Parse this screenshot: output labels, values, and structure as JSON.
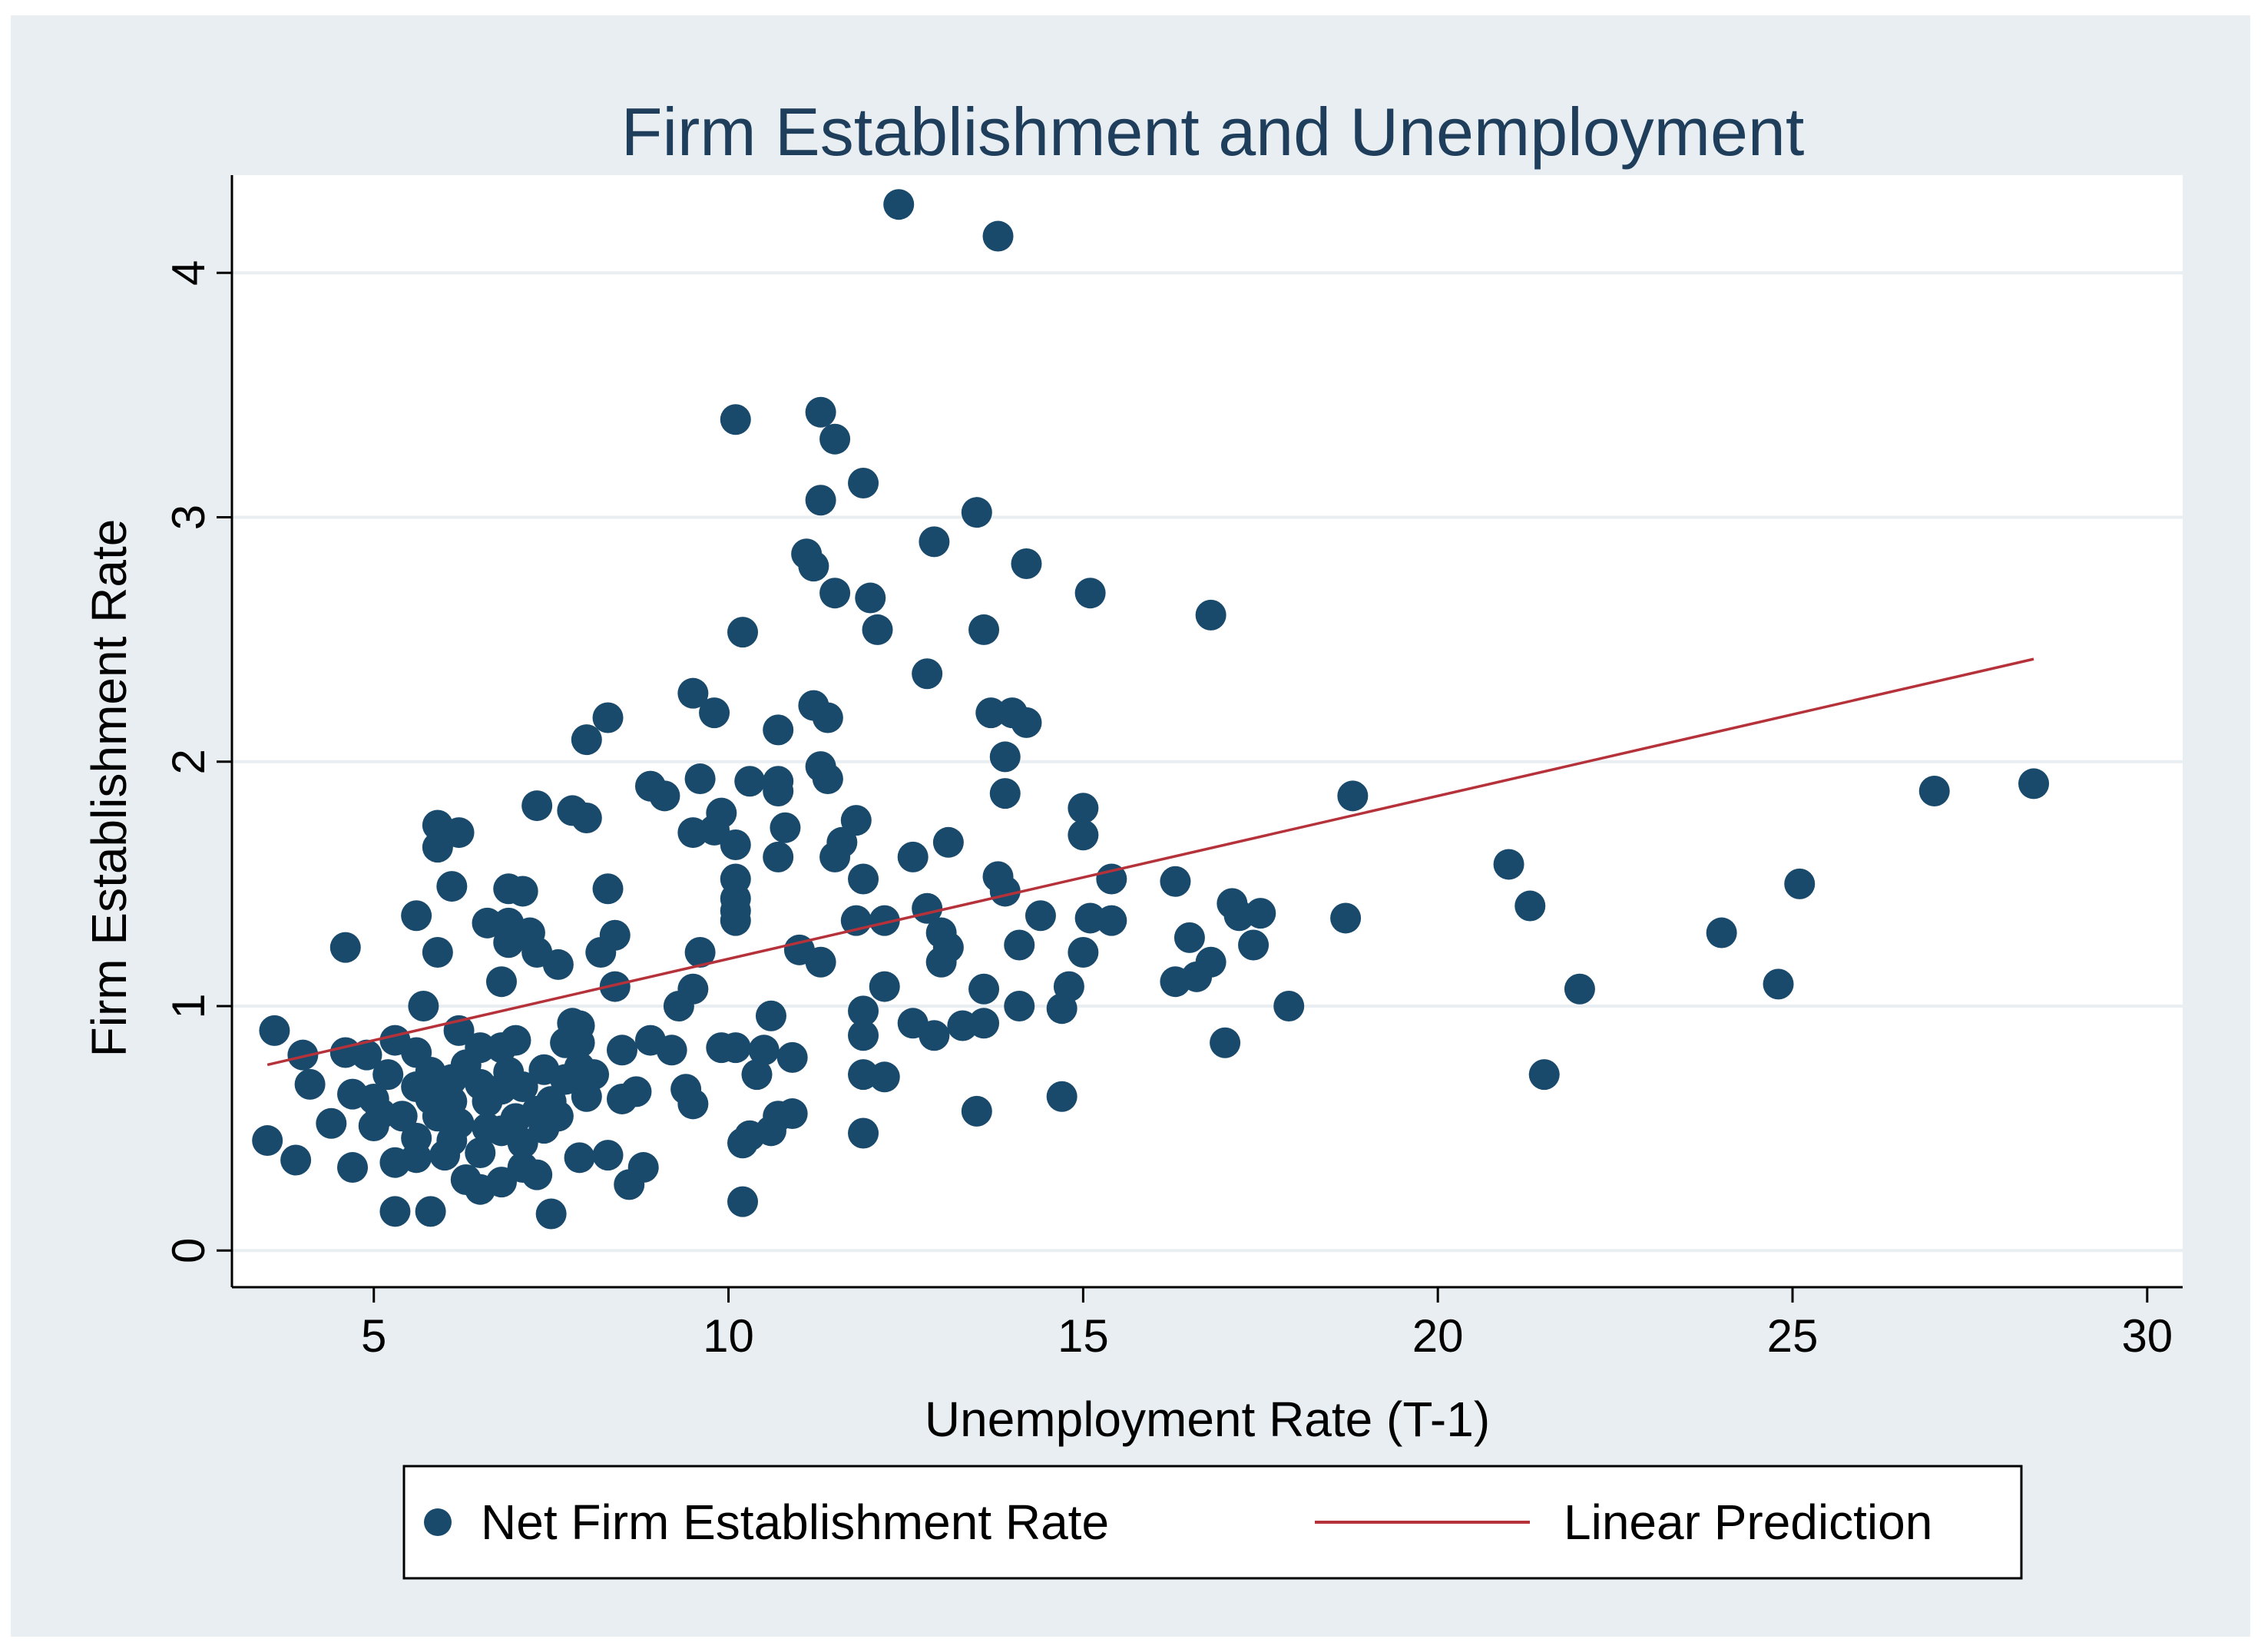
{
  "chart_data": {
    "type": "scatter",
    "title": "Firm Establishment and Unemployment",
    "xlabel": "Unemployment Rate (T-1)",
    "ylabel": "Firm Establishment Rate",
    "xlim": [
      3,
      30.5
    ],
    "ylim": [
      -0.15,
      4.4
    ],
    "xticks": [
      5,
      10,
      15,
      20,
      25,
      30
    ],
    "yticks": [
      0,
      1,
      2,
      3,
      4
    ],
    "grid": "horizontal",
    "legend_position": "bottom",
    "colors": {
      "points": "#1a4a6b",
      "fit_line": "#b5323a",
      "plot_bg": "#ffffff",
      "outer_bg": "#e9eef2",
      "grid": "#e9eef2"
    },
    "series": [
      {
        "name": "Net Firm Establishment Rate",
        "type": "scatter",
        "points": [
          [
            12.4,
            4.28
          ],
          [
            13.8,
            4.15
          ],
          [
            10.1,
            3.4
          ],
          [
            11.3,
            3.43
          ],
          [
            11.5,
            3.32
          ],
          [
            11.9,
            3.14
          ],
          [
            11.3,
            3.07
          ],
          [
            13.5,
            3.02
          ],
          [
            12.9,
            2.9
          ],
          [
            11.1,
            2.85
          ],
          [
            11.2,
            2.8
          ],
          [
            14.2,
            2.81
          ],
          [
            11.5,
            2.69
          ],
          [
            12.0,
            2.67
          ],
          [
            15.1,
            2.69
          ],
          [
            16.8,
            2.6
          ],
          [
            10.2,
            2.53
          ],
          [
            12.1,
            2.54
          ],
          [
            13.6,
            2.54
          ],
          [
            12.8,
            2.36
          ],
          [
            9.5,
            2.28
          ],
          [
            11.2,
            2.23
          ],
          [
            11.4,
            2.18
          ],
          [
            13.7,
            2.2
          ],
          [
            14.0,
            2.2
          ],
          [
            14.2,
            2.16
          ],
          [
            9.8,
            2.2
          ],
          [
            8.3,
            2.18
          ],
          [
            8.0,
            2.09
          ],
          [
            10.7,
            2.13
          ],
          [
            11.3,
            1.98
          ],
          [
            13.9,
            2.02
          ],
          [
            11.4,
            1.93
          ],
          [
            9.6,
            1.93
          ],
          [
            10.3,
            1.92
          ],
          [
            10.7,
            1.92
          ],
          [
            10.7,
            1.88
          ],
          [
            8.9,
            1.9
          ],
          [
            9.1,
            1.86
          ],
          [
            13.9,
            1.87
          ],
          [
            7.3,
            1.82
          ],
          [
            7.8,
            1.8
          ],
          [
            8.0,
            1.77
          ],
          [
            9.9,
            1.79
          ],
          [
            10.8,
            1.73
          ],
          [
            9.5,
            1.71
          ],
          [
            9.8,
            1.72
          ],
          [
            11.8,
            1.76
          ],
          [
            11.6,
            1.67
          ],
          [
            15.0,
            1.81
          ],
          [
            15.0,
            1.7
          ],
          [
            5.9,
            1.74
          ],
          [
            5.9,
            1.65
          ],
          [
            6.2,
            1.71
          ],
          [
            10.1,
            1.66
          ],
          [
            12.6,
            1.61
          ],
          [
            13.1,
            1.67
          ],
          [
            10.7,
            1.61
          ],
          [
            11.5,
            1.61
          ],
          [
            13.8,
            1.53
          ],
          [
            13.9,
            1.47
          ],
          [
            11.9,
            1.52
          ],
          [
            10.1,
            1.52
          ],
          [
            10.1,
            1.44
          ],
          [
            10.1,
            1.39
          ],
          [
            10.1,
            1.35
          ],
          [
            6.1,
            1.49
          ],
          [
            6.9,
            1.48
          ],
          [
            7.1,
            1.47
          ],
          [
            8.3,
            1.48
          ],
          [
            15.4,
            1.52
          ],
          [
            16.3,
            1.51
          ],
          [
            17.1,
            1.42
          ],
          [
            17.2,
            1.37
          ],
          [
            17.5,
            1.38
          ],
          [
            12.8,
            1.4
          ],
          [
            12.2,
            1.35
          ],
          [
            11.8,
            1.35
          ],
          [
            5.6,
            1.37
          ],
          [
            6.6,
            1.34
          ],
          [
            6.9,
            1.34
          ],
          [
            7.2,
            1.3
          ],
          [
            8.4,
            1.29
          ],
          [
            6.9,
            1.26
          ],
          [
            13.0,
            1.3
          ],
          [
            13.1,
            1.24
          ],
          [
            14.1,
            1.25
          ],
          [
            14.4,
            1.37
          ],
          [
            15.1,
            1.36
          ],
          [
            15.4,
            1.35
          ],
          [
            16.5,
            1.28
          ],
          [
            18.7,
            1.36
          ],
          [
            17.4,
            1.25
          ],
          [
            16.8,
            1.18
          ],
          [
            16.6,
            1.12
          ],
          [
            16.3,
            1.1
          ],
          [
            5.9,
            1.22
          ],
          [
            7.3,
            1.22
          ],
          [
            7.6,
            1.17
          ],
          [
            8.2,
            1.22
          ],
          [
            9.6,
            1.22
          ],
          [
            11.0,
            1.23
          ],
          [
            11.3,
            1.18
          ],
          [
            13.0,
            1.18
          ],
          [
            15.0,
            1.22
          ],
          [
            4.6,
            1.24
          ],
          [
            6.8,
            1.1
          ],
          [
            8.4,
            1.08
          ],
          [
            9.5,
            1.07
          ],
          [
            12.2,
            1.08
          ],
          [
            13.6,
            1.07
          ],
          [
            14.8,
            1.08
          ],
          [
            5.7,
            1.0
          ],
          [
            9.3,
            1.0
          ],
          [
            11.9,
            0.98
          ],
          [
            14.1,
            1.0
          ],
          [
            14.7,
            0.99
          ],
          [
            17.9,
            1.0
          ],
          [
            10.6,
            0.96
          ],
          [
            3.6,
            0.9
          ],
          [
            6.2,
            0.9
          ],
          [
            7.8,
            0.93
          ],
          [
            7.9,
            0.92
          ],
          [
            12.6,
            0.93
          ],
          [
            12.9,
            0.88
          ],
          [
            13.3,
            0.92
          ],
          [
            13.6,
            0.93
          ],
          [
            11.9,
            0.88
          ],
          [
            8.9,
            0.86
          ],
          [
            9.2,
            0.82
          ],
          [
            9.9,
            0.83
          ],
          [
            10.1,
            0.83
          ],
          [
            10.5,
            0.82
          ],
          [
            10.9,
            0.79
          ],
          [
            8.5,
            0.82
          ],
          [
            4.0,
            0.8
          ],
          [
            4.6,
            0.81
          ],
          [
            4.9,
            0.8
          ],
          [
            5.3,
            0.86
          ],
          [
            5.6,
            0.81
          ],
          [
            6.5,
            0.83
          ],
          [
            6.8,
            0.83
          ],
          [
            7.0,
            0.86
          ],
          [
            7.7,
            0.85
          ],
          [
            7.9,
            0.85
          ],
          [
            17.0,
            0.85
          ],
          [
            5.2,
            0.72
          ],
          [
            5.8,
            0.73
          ],
          [
            6.1,
            0.7
          ],
          [
            6.3,
            0.76
          ],
          [
            6.5,
            0.68
          ],
          [
            6.9,
            0.73
          ],
          [
            7.4,
            0.74
          ],
          [
            7.7,
            0.7
          ],
          [
            7.9,
            0.75
          ],
          [
            8.1,
            0.72
          ],
          [
            10.4,
            0.72
          ],
          [
            11.9,
            0.72
          ],
          [
            12.2,
            0.71
          ],
          [
            4.1,
            0.68
          ],
          [
            4.7,
            0.64
          ],
          [
            5.0,
            0.62
          ],
          [
            5.6,
            0.67
          ],
          [
            5.8,
            0.62
          ],
          [
            6.1,
            0.61
          ],
          [
            6.6,
            0.61
          ],
          [
            6.8,
            0.66
          ],
          [
            7.1,
            0.67
          ],
          [
            7.5,
            0.61
          ],
          [
            8.0,
            0.63
          ],
          [
            8.5,
            0.62
          ],
          [
            8.7,
            0.65
          ],
          [
            9.4,
            0.66
          ],
          [
            9.5,
            0.6
          ],
          [
            14.7,
            0.63
          ],
          [
            5.1,
            0.56
          ],
          [
            5.4,
            0.55
          ],
          [
            5.9,
            0.55
          ],
          [
            6.2,
            0.52
          ],
          [
            6.6,
            0.5
          ],
          [
            7.0,
            0.54
          ],
          [
            7.3,
            0.57
          ],
          [
            7.6,
            0.55
          ],
          [
            10.7,
            0.55
          ],
          [
            10.9,
            0.56
          ],
          [
            13.5,
            0.57
          ],
          [
            4.4,
            0.52
          ],
          [
            5.0,
            0.51
          ],
          [
            5.6,
            0.46
          ],
          [
            6.1,
            0.45
          ],
          [
            6.8,
            0.49
          ],
          [
            7.1,
            0.44
          ],
          [
            7.4,
            0.5
          ],
          [
            10.3,
            0.47
          ],
          [
            10.6,
            0.49
          ],
          [
            11.9,
            0.48
          ],
          [
            3.5,
            0.45
          ],
          [
            3.9,
            0.37
          ],
          [
            4.7,
            0.34
          ],
          [
            5.3,
            0.36
          ],
          [
            5.6,
            0.38
          ],
          [
            6.0,
            0.39
          ],
          [
            6.5,
            0.4
          ],
          [
            7.1,
            0.34
          ],
          [
            7.3,
            0.31
          ],
          [
            7.9,
            0.38
          ],
          [
            8.3,
            0.39
          ],
          [
            8.8,
            0.34
          ],
          [
            10.2,
            0.44
          ],
          [
            6.3,
            0.29
          ],
          [
            6.5,
            0.25
          ],
          [
            6.8,
            0.28
          ],
          [
            8.6,
            0.27
          ],
          [
            10.2,
            0.2
          ],
          [
            5.3,
            0.16
          ],
          [
            5.8,
            0.16
          ],
          [
            7.5,
            0.15
          ],
          [
            21.0,
            1.58
          ],
          [
            21.3,
            1.41
          ],
          [
            25.1,
            1.5
          ],
          [
            24.0,
            1.3
          ],
          [
            22.0,
            1.07
          ],
          [
            24.8,
            1.09
          ],
          [
            21.5,
            0.72
          ],
          [
            18.8,
            1.86
          ],
          [
            27.0,
            1.88
          ],
          [
            28.4,
            1.91
          ]
        ]
      },
      {
        "name": "Linear Prediction",
        "type": "line",
        "points": [
          [
            3.5,
            0.76
          ],
          [
            28.4,
            2.42
          ]
        ]
      }
    ]
  }
}
